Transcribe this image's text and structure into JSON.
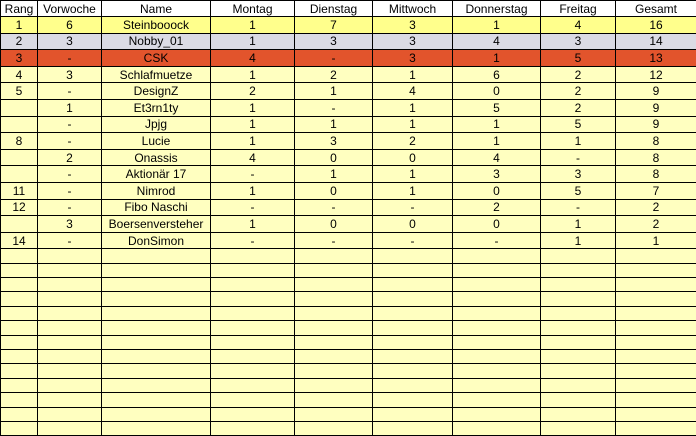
{
  "colors": {
    "grid": "#000000",
    "header_bg": "#FFFFFF",
    "text": "#000000",
    "row_default": "#FFFFC0",
    "row_rank1": "#FFFF8C",
    "row_rank2": "#DBDBE4",
    "row_rank3": "#E2542C"
  },
  "table": {
    "columns": [
      "Rang",
      "Vorwoche",
      "Name",
      "Montag",
      "Dienstag",
      "Mittwoch",
      "Donnerstag",
      "Freitag",
      "Gesamt"
    ],
    "column_keys": [
      "rang",
      "vorwoche",
      "name",
      "montag",
      "dienstag",
      "mittwoch",
      "donnerstag",
      "freitag",
      "gesamt"
    ],
    "rows": [
      {
        "style": "rank1",
        "cells": [
          "1",
          "6",
          "Steinbooock",
          "1",
          "7",
          "3",
          "1",
          "4",
          "16"
        ]
      },
      {
        "style": "rank2",
        "cells": [
          "2",
          "3",
          "Nobby_01",
          "1",
          "3",
          "3",
          "4",
          "3",
          "14"
        ]
      },
      {
        "style": "rank3",
        "cells": [
          "3",
          "-",
          "CSK",
          "4",
          "-",
          "3",
          "1",
          "5",
          "13"
        ]
      },
      {
        "style": "default",
        "cells": [
          "4",
          "3",
          "Schlafmuetze",
          "1",
          "2",
          "1",
          "6",
          "2",
          "12"
        ]
      },
      {
        "style": "default",
        "cells": [
          "5",
          "-",
          "DesignZ",
          "2",
          "1",
          "4",
          "0",
          "2",
          "9"
        ]
      },
      {
        "style": "default",
        "cells": [
          "",
          "1",
          "Et3rn1ty",
          "1",
          "-",
          "1",
          "5",
          "2",
          "9"
        ]
      },
      {
        "style": "default",
        "cells": [
          "",
          "-",
          "Jpjg",
          "1",
          "1",
          "1",
          "1",
          "5",
          "9"
        ]
      },
      {
        "style": "default",
        "cells": [
          "8",
          "-",
          "Lucie",
          "1",
          "3",
          "2",
          "1",
          "1",
          "8"
        ]
      },
      {
        "style": "default",
        "cells": [
          "",
          "2",
          "Onassis",
          "4",
          "0",
          "0",
          "4",
          "-",
          "8"
        ]
      },
      {
        "style": "default",
        "cells": [
          "",
          "-",
          "Aktionär 17",
          "-",
          "1",
          "1",
          "3",
          "3",
          "8"
        ]
      },
      {
        "style": "default",
        "cells": [
          "11",
          "-",
          "Nimrod",
          "1",
          "0",
          "1",
          "0",
          "5",
          "7"
        ]
      },
      {
        "style": "default",
        "cells": [
          "12",
          "-",
          "Fibo Naschi",
          "-",
          "-",
          "-",
          "2",
          "-",
          "2"
        ]
      },
      {
        "style": "default",
        "cells": [
          "",
          "3",
          "Boersenversteher",
          "1",
          "0",
          "0",
          "0",
          "1",
          "2"
        ]
      },
      {
        "style": "default",
        "cells": [
          "14",
          "-",
          "DonSimon",
          "-",
          "-",
          "-",
          "-",
          "1",
          "1"
        ]
      }
    ],
    "empty_row_count": 13
  }
}
